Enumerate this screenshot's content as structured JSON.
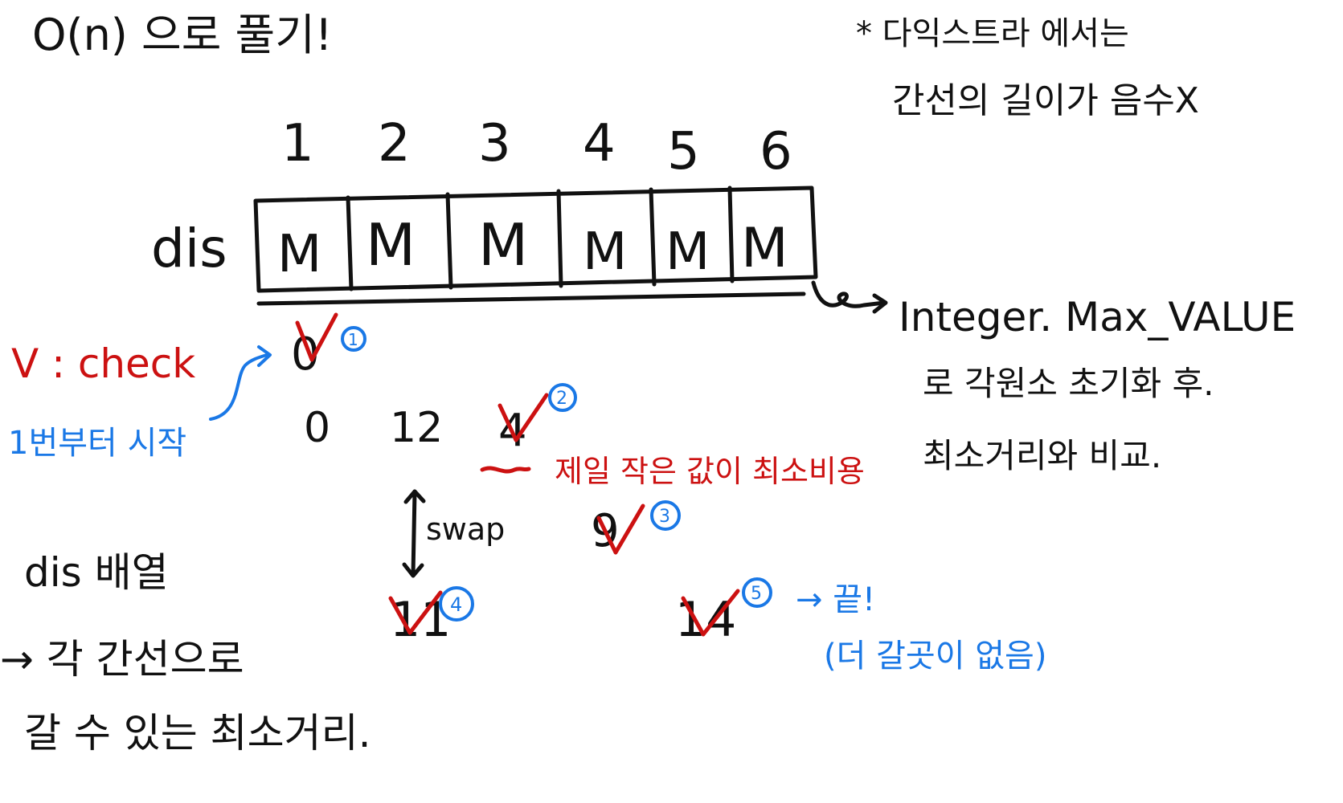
{
  "title": "O(n) 으로 풀기!",
  "note": {
    "line1": "* 다익스트라 에서는",
    "line2": "간선의 길이가 음수X"
  },
  "indices": [
    "1",
    "2",
    "3",
    "4",
    "5",
    "6"
  ],
  "dis": {
    "label": "dis",
    "cells": [
      "M",
      "M",
      "M",
      "M",
      "M",
      "M"
    ]
  },
  "init_note": {
    "arrow_label": "Integer. Max_VALUE",
    "line2": "로 각원소 초기화 후.",
    "line3": "최소거리와 비교."
  },
  "legend": {
    "check": "V : check",
    "start": "1번부터 시작"
  },
  "row_values": {
    "first": "0",
    "second": [
      "0",
      "12",
      "4"
    ]
  },
  "smallest_note": "제일 작은 값이 최소비용",
  "swap_label": "swap",
  "nine": "9",
  "eleven": "11",
  "fourteen": "14",
  "steps": [
    "1",
    "2",
    "3",
    "4",
    "5"
  ],
  "end_note": {
    "line1": "→ 끝!",
    "line2": "(더 갈곳이 없음)"
  },
  "explain": {
    "line1": "dis 배열",
    "line2": "→ 각 간선으로",
    "line3": "갈 수 있는 최소거리."
  },
  "colors": {
    "ink": "#111111",
    "check": "#cc1111",
    "annotation": "#1a78e6"
  }
}
